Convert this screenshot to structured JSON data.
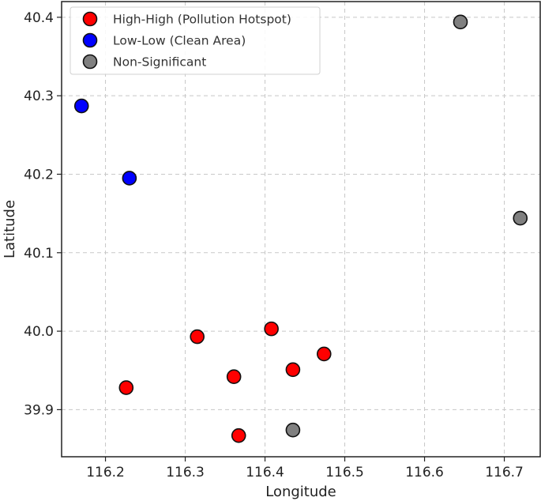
{
  "chart_data": {
    "type": "scatter",
    "title": "",
    "xlabel": "Longitude",
    "ylabel": "Latitude",
    "xlim": [
      116.145,
      116.745
    ],
    "ylim": [
      39.84,
      40.42
    ],
    "x_ticks": [
      116.2,
      116.3,
      116.4,
      116.5,
      116.6,
      116.7
    ],
    "y_ticks": [
      39.9,
      40.0,
      40.1,
      40.2,
      40.3,
      40.4
    ],
    "x_tick_labels": [
      "116.2",
      "116.3",
      "116.4",
      "116.5",
      "116.6",
      "116.7"
    ],
    "y_tick_labels": [
      "39.9",
      "40.0",
      "40.1",
      "40.2",
      "40.3",
      "40.4"
    ],
    "grid": true,
    "legend_position": "top-left",
    "series": [
      {
        "name": "High-High (Pollution Hotspot)",
        "color": "#ff0000",
        "points": [
          {
            "x": 116.226,
            "y": 39.928
          },
          {
            "x": 116.315,
            "y": 39.993
          },
          {
            "x": 116.361,
            "y": 39.942
          },
          {
            "x": 116.367,
            "y": 39.867
          },
          {
            "x": 116.408,
            "y": 40.003
          },
          {
            "x": 116.435,
            "y": 39.951
          },
          {
            "x": 116.474,
            "y": 39.971
          }
        ]
      },
      {
        "name": "Low-Low (Clean Area)",
        "color": "#0000ff",
        "points": [
          {
            "x": 116.17,
            "y": 40.287
          },
          {
            "x": 116.23,
            "y": 40.195
          }
        ]
      },
      {
        "name": "Non-Significant",
        "color": "#808080",
        "points": [
          {
            "x": 116.435,
            "y": 39.874
          },
          {
            "x": 116.645,
            "y": 40.394
          },
          {
            "x": 116.72,
            "y": 40.144
          }
        ]
      }
    ]
  }
}
